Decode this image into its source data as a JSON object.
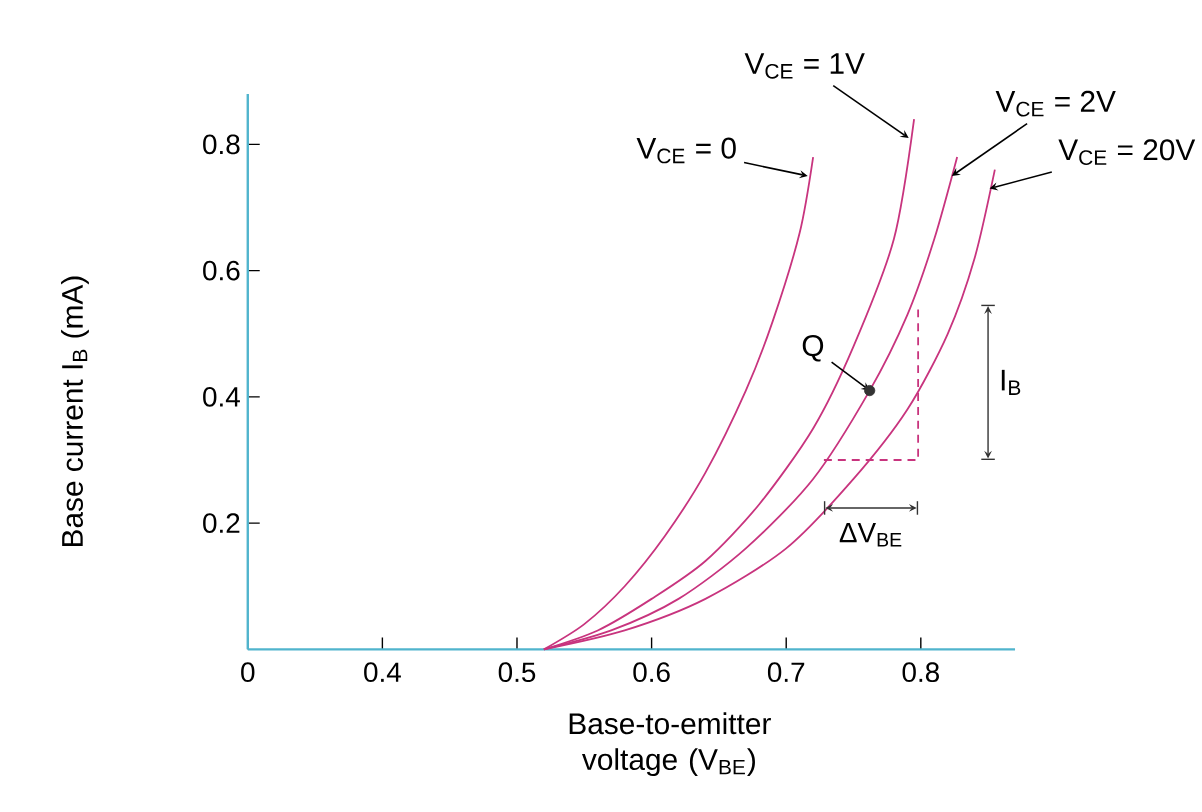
{
  "chart_data": {
    "type": "line",
    "xlabel": "Base-to-emitter voltage (V$_{BE}$)",
    "ylabel": "Base current I$_{B}$ (mA)",
    "xlim": [
      0.3,
      0.87
    ],
    "ylim": [
      0,
      0.88
    ],
    "xticks": [
      {
        "value": 0.3,
        "label": "0"
      },
      0.4,
      0.5,
      0.6,
      0.7,
      0.8
    ],
    "yticks": [
      0.2,
      0.4,
      0.6,
      0.8
    ],
    "grid": false,
    "legend": false,
    "annotations": [
      {
        "text": "Q",
        "x": 0.762,
        "y": 0.41
      },
      "I$_{B}$",
      "ΔV$_{BE}$"
    ],
    "series": [
      {
        "name": "V$_{CE}$ = 0",
        "color": "#c8347e",
        "x": [
          0.52,
          0.55,
          0.58,
          0.61,
          0.64,
          0.67,
          0.69,
          0.71,
          0.72
        ],
        "values": [
          0,
          0.04,
          0.1,
          0.18,
          0.28,
          0.41,
          0.52,
          0.66,
          0.78
        ]
      },
      {
        "name": "V$_{CE}$ = 1V",
        "color": "#c8347e",
        "x": [
          0.52,
          0.56,
          0.6,
          0.64,
          0.68,
          0.72,
          0.75,
          0.78,
          0.795
        ],
        "values": [
          0,
          0.03,
          0.08,
          0.14,
          0.23,
          0.35,
          0.48,
          0.65,
          0.84
        ]
      },
      {
        "name": "V$_{CE}$ = 2V",
        "color": "#c8347e",
        "x": [
          0.52,
          0.57,
          0.62,
          0.67,
          0.72,
          0.762,
          0.79,
          0.81,
          0.827
        ],
        "values": [
          0,
          0.03,
          0.08,
          0.16,
          0.27,
          0.41,
          0.53,
          0.65,
          0.78
        ]
      },
      {
        "name": "V$_{CE}$ = 20V",
        "color": "#c8347e",
        "x": [
          0.52,
          0.58,
          0.64,
          0.7,
          0.75,
          0.79,
          0.82,
          0.84,
          0.855
        ],
        "values": [
          0,
          0.03,
          0.08,
          0.16,
          0.27,
          0.38,
          0.5,
          0.62,
          0.76
        ]
      },
      {
        "type": "line",
        "line_style": "dashed",
        "color": "#c8347e",
        "x": [
          0.728,
          0.798,
          0.798
        ],
        "values": [
          0.3,
          0.3,
          0.546
        ]
      },
      {
        "type": "scatter",
        "color": "#333333",
        "x": [
          0.762
        ],
        "values": [
          0.41
        ]
      }
    ]
  }
}
